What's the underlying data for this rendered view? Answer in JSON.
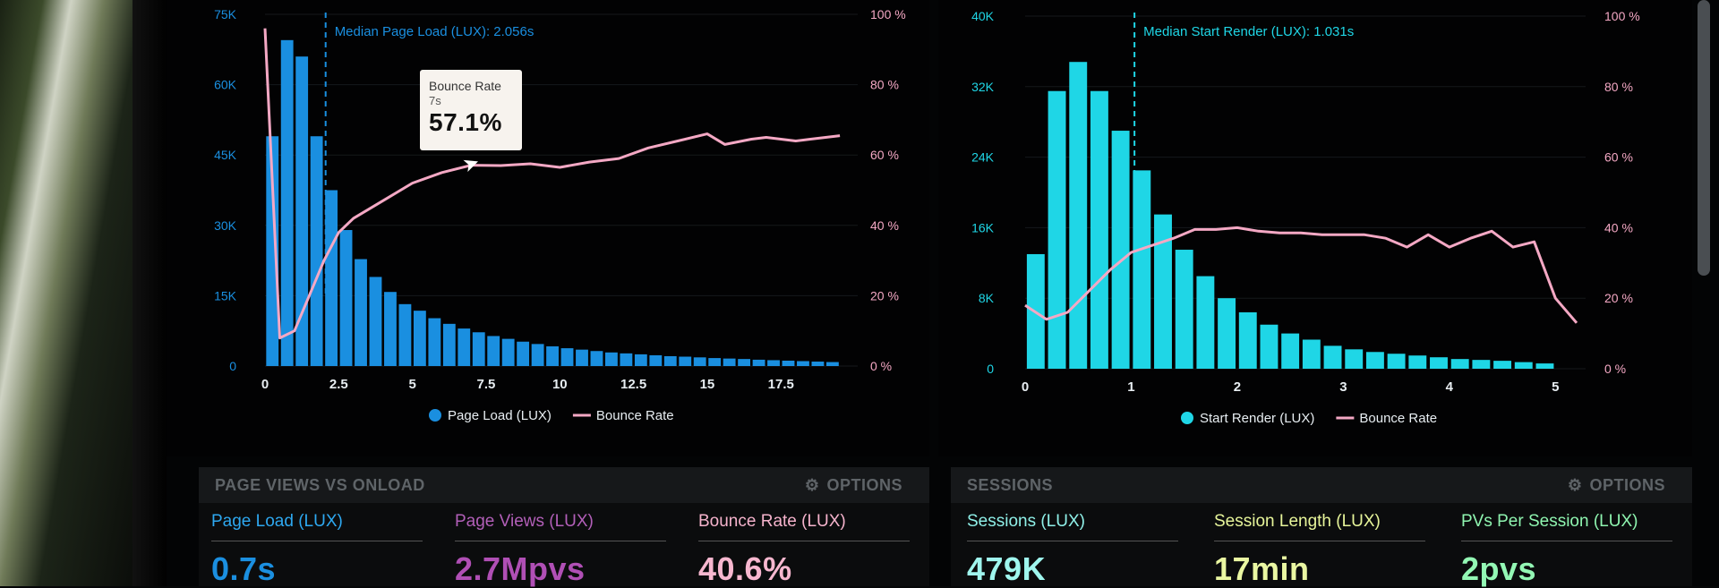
{
  "chart_data": [
    {
      "type": "bar",
      "title": "",
      "xlabel": "",
      "ylabel": "",
      "x_ticks": [
        "0",
        "2.5",
        "5",
        "7.5",
        "10",
        "12.5",
        "15",
        "17.5"
      ],
      "x_range": [
        0,
        19.8
      ],
      "y_ticks": [
        "0",
        "15K",
        "30K",
        "45K",
        "60K",
        "75K"
      ],
      "ylim": [
        0,
        75000
      ],
      "y2_ticks": [
        "0 %",
        "20 %",
        "40 %",
        "60 %",
        "80 %",
        "100 %"
      ],
      "y2lim": [
        0,
        100
      ],
      "bin_width": 0.5,
      "bars_x": [
        0,
        0.5,
        1.0,
        1.5,
        2.0,
        2.5,
        3.0,
        3.5,
        4.0,
        4.5,
        5.0,
        5.5,
        6.0,
        6.5,
        7.0,
        7.5,
        8.0,
        8.5,
        9.0,
        9.5,
        10.0,
        10.5,
        11.0,
        11.5,
        12.0,
        12.5,
        13.0,
        13.5,
        14.0,
        14.5,
        15.0,
        15.5,
        16.0,
        16.5,
        17.0,
        17.5,
        18.0,
        18.5,
        19.0
      ],
      "series": [
        {
          "name": "Page Load (LUX)",
          "color": "#1a8fe0",
          "axis": "left",
          "values": [
            49000,
            69500,
            66000,
            49000,
            37500,
            29000,
            22800,
            19000,
            15800,
            13200,
            11800,
            10200,
            9000,
            8000,
            7200,
            6400,
            5800,
            5200,
            4700,
            4200,
            3800,
            3500,
            3200,
            2900,
            2700,
            2500,
            2300,
            2100,
            2000,
            1850,
            1700,
            1600,
            1500,
            1350,
            1250,
            1150,
            1050,
            950,
            850
          ]
        },
        {
          "name": "Bounce Rate",
          "color": "#f4a8c4",
          "axis": "right",
          "points": [
            [
              0,
              96
            ],
            [
              0.5,
              8
            ],
            [
              1.0,
              10
            ],
            [
              1.5,
              20
            ],
            [
              2.0,
              30
            ],
            [
              2.5,
              38
            ],
            [
              3.0,
              42
            ],
            [
              4.0,
              47
            ],
            [
              5.0,
              52
            ],
            [
              6.0,
              55
            ],
            [
              7.0,
              57.1
            ],
            [
              8.0,
              57
            ],
            [
              9.0,
              57.5
            ],
            [
              10.0,
              56.5
            ],
            [
              11.0,
              58
            ],
            [
              12.0,
              59
            ],
            [
              13.0,
              62
            ],
            [
              14.0,
              64
            ],
            [
              15.0,
              66
            ],
            [
              15.6,
              63
            ],
            [
              16.5,
              64.5
            ],
            [
              17.0,
              65
            ],
            [
              17.5,
              64.5
            ],
            [
              18.0,
              64
            ],
            [
              18.5,
              64.5
            ],
            [
              19.5,
              65.5
            ]
          ]
        }
      ],
      "median_line": {
        "x": 2.056,
        "label": "Median Page Load (LUX): 2.056s"
      },
      "legend_position": "bottom",
      "grid": true
    },
    {
      "type": "bar",
      "title": "",
      "xlabel": "",
      "ylabel": "",
      "x_ticks": [
        "0",
        "1",
        "2",
        "3",
        "4",
        "5"
      ],
      "x_range": [
        0,
        5.2
      ],
      "y_ticks": [
        "0",
        "8K",
        "16K",
        "24K",
        "32K",
        "40K"
      ],
      "ylim": [
        0,
        40000
      ],
      "y2_ticks": [
        "0 %",
        "20 %",
        "40 %",
        "60 %",
        "80 %",
        "100 %"
      ],
      "y2lim": [
        0,
        100
      ],
      "bin_width": 0.2,
      "bars_x": [
        0.1,
        0.3,
        0.5,
        0.7,
        0.9,
        1.1,
        1.3,
        1.5,
        1.7,
        1.9,
        2.1,
        2.3,
        2.5,
        2.7,
        2.9,
        3.1,
        3.3,
        3.5,
        3.7,
        3.9,
        4.1,
        4.3,
        4.5,
        4.7,
        4.9
      ],
      "series": [
        {
          "name": "Start Render (LUX)",
          "color": "#1fd6e6",
          "axis": "left",
          "values": [
            13000,
            31500,
            34800,
            31500,
            27000,
            22500,
            17500,
            13500,
            10500,
            8000,
            6400,
            5000,
            4000,
            3300,
            2600,
            2200,
            1900,
            1700,
            1500,
            1300,
            1100,
            1000,
            900,
            750,
            600
          ]
        },
        {
          "name": "Bounce Rate",
          "color": "#f4a8c4",
          "axis": "right",
          "points": [
            [
              0,
              18
            ],
            [
              0.2,
              14
            ],
            [
              0.4,
              16
            ],
            [
              0.6,
              22
            ],
            [
              0.8,
              28
            ],
            [
              1.0,
              33
            ],
            [
              1.2,
              35
            ],
            [
              1.4,
              37
            ],
            [
              1.6,
              39.5
            ],
            [
              1.8,
              39.5
            ],
            [
              2.0,
              40
            ],
            [
              2.2,
              39
            ],
            [
              2.4,
              38.5
            ],
            [
              2.6,
              38.5
            ],
            [
              2.8,
              38
            ],
            [
              3.0,
              38
            ],
            [
              3.2,
              38
            ],
            [
              3.4,
              37
            ],
            [
              3.6,
              34.5
            ],
            [
              3.8,
              38
            ],
            [
              4.0,
              34.5
            ],
            [
              4.2,
              37
            ],
            [
              4.4,
              39
            ],
            [
              4.6,
              34.5
            ],
            [
              4.8,
              36
            ],
            [
              5.0,
              20
            ],
            [
              5.2,
              13
            ]
          ]
        }
      ],
      "median_line": {
        "x": 1.031,
        "label": "Median Start Render (LUX): 1.031s"
      },
      "legend_position": "bottom",
      "grid": true
    }
  ],
  "tooltip": {
    "title": "Bounce Rate",
    "sub": "7s",
    "value": "57.1%"
  },
  "sections": [
    {
      "title": "PAGE VIEWS VS ONLOAD",
      "options_label": "OPTIONS",
      "metrics": [
        {
          "label": "Page Load (LUX)",
          "value": "0.7s",
          "label_color": "#2ea8f0",
          "value_color": "#1b8fe0"
        },
        {
          "label": "Page Views (LUX)",
          "value": "2.7Mpvs",
          "label_color": "#b25fb8",
          "value_color": "#b04fb5"
        },
        {
          "label": "Bounce Rate (LUX)",
          "value": "40.6%",
          "label_color": "#f5b3cc",
          "value_color": "#f7b7cf"
        }
      ]
    },
    {
      "title": "SESSIONS",
      "options_label": "OPTIONS",
      "metrics": [
        {
          "label": "Sessions (LUX)",
          "value": "479K",
          "label_color": "#8ff0e8",
          "value_color": "#9ff6ee"
        },
        {
          "label": "Session Length (LUX)",
          "value": "17min",
          "label_color": "#e7f59a",
          "value_color": "#eaf7a2"
        },
        {
          "label": "PVs Per Session (LUX)",
          "value": "2pvs",
          "label_color": "#8ff5b0",
          "value_color": "#93f7b4"
        }
      ]
    }
  ],
  "icons": {
    "options": "gear-icon",
    "cursor": "mouse-pointer-icon"
  }
}
